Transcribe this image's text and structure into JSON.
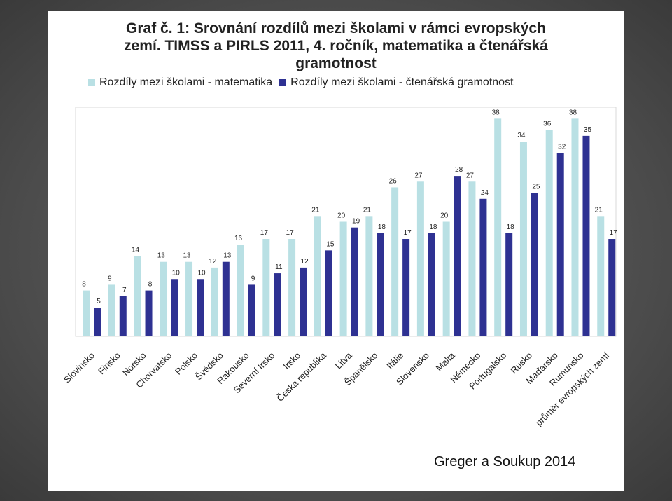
{
  "chart_data": {
    "type": "bar",
    "title_lines": [
      "Graf č. 1: Srovnání rozdílů mezi školami v rámci evropských",
      "zemí. TIMSS a PIRLS 2011, 4. ročník, matematika a čtenářská",
      "gramotnost"
    ],
    "categories": [
      "Slovinsko",
      "Finsko",
      "Norsko",
      "Chorvatsko",
      "Polsko",
      "Švédsko",
      "Rakousko",
      "Severní Irsko",
      "Irsko",
      "Česká republika",
      "Litva",
      "Španělsko",
      "Itálie",
      "Slovensko",
      "Malta",
      "Německo",
      "Portugalsko",
      "Rusko",
      "Maďarsko",
      "Rumunsko",
      "průměr evropských zemí"
    ],
    "series": [
      {
        "name": "Rozdíly mezi školami - matematika",
        "color": "#b9e0e4",
        "values": [
          8,
          9,
          14,
          13,
          13,
          12,
          16,
          17,
          17,
          21,
          20,
          21,
          26,
          27,
          20,
          27,
          38,
          34,
          36,
          38,
          21
        ]
      },
      {
        "name": "Rozdíly mezi školami - čtenářská gramotnost",
        "color": "#2e3192",
        "values": [
          5,
          7,
          8,
          10,
          10,
          13,
          9,
          11,
          12,
          15,
          19,
          18,
          17,
          18,
          28,
          24,
          18,
          25,
          32,
          35,
          17
        ]
      }
    ],
    "ylim": [
      0,
      40
    ],
    "grid": false,
    "legend_position": "top"
  },
  "credit": "Greger a Soukup 2014"
}
